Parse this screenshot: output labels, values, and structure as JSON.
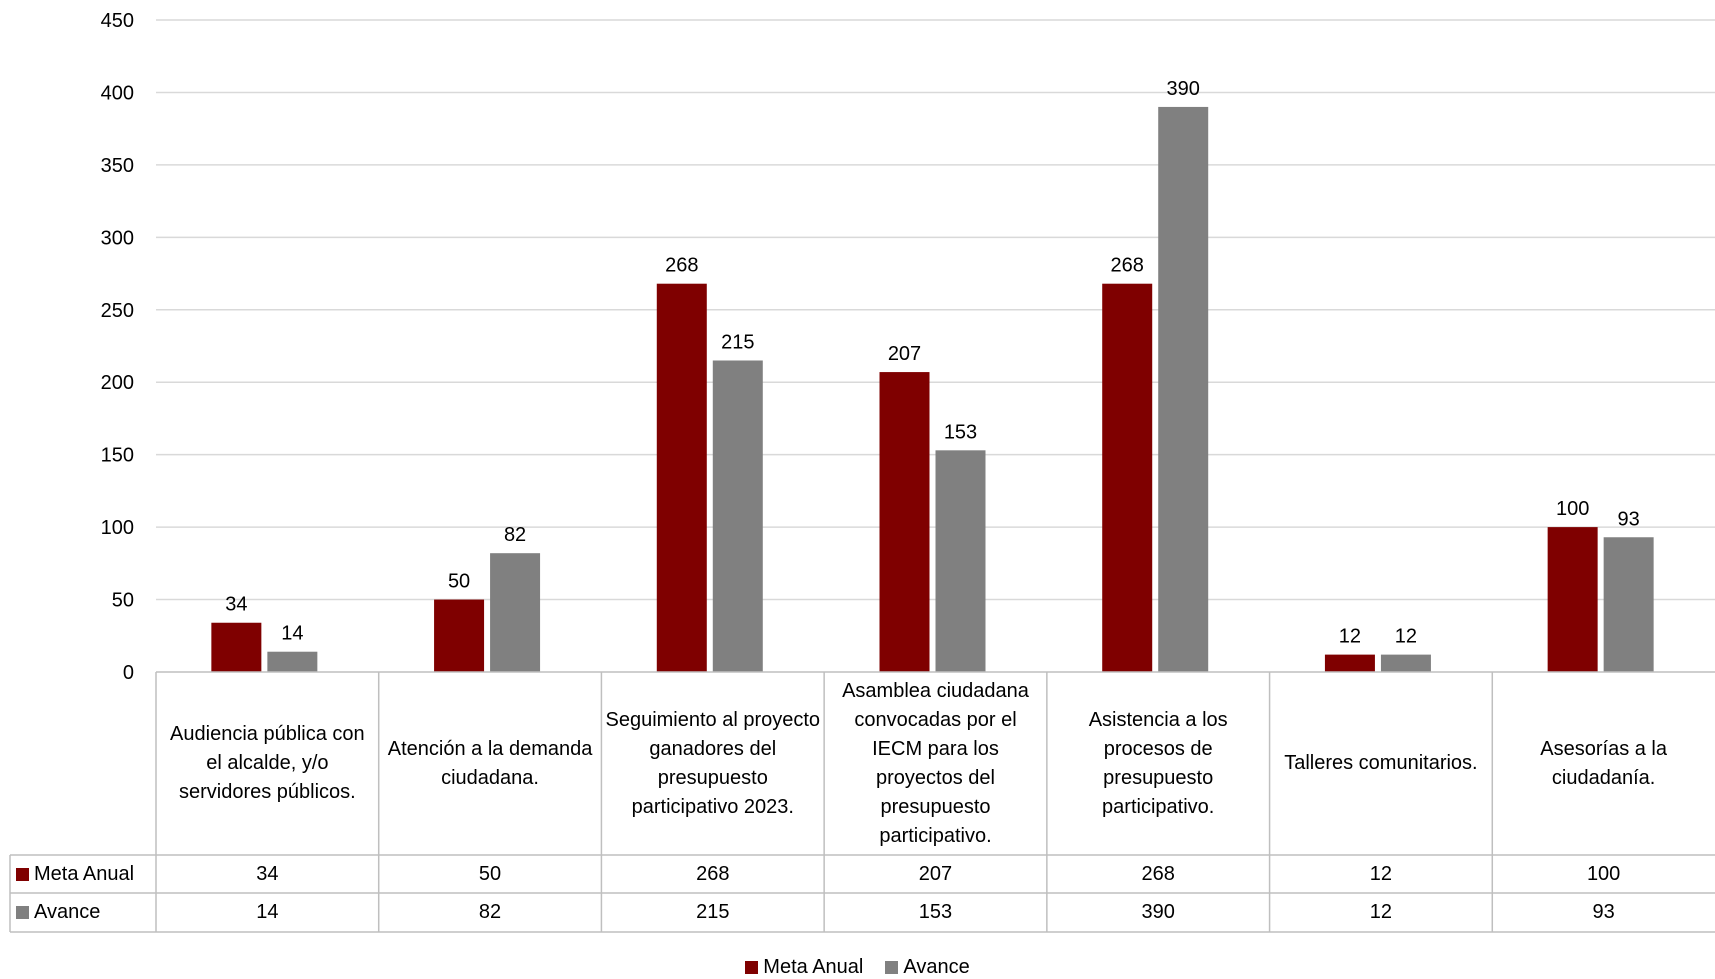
{
  "chart_data": {
    "type": "bar",
    "title": "",
    "xlabel": "",
    "ylabel": "",
    "ylim": [
      0,
      450
    ],
    "yticks": [
      0,
      50,
      100,
      150,
      200,
      250,
      300,
      350,
      400,
      450
    ],
    "grid": true,
    "legend_position": "bottom",
    "categories": [
      "Audiencia pública con el alcalde, y/o servidores públicos.",
      "Atención a la demanda ciudadana.",
      "Seguimiento al proyecto ganadores del presupuesto participativo 2023.",
      "Asamblea ciudadana convocadas por el IECM para los proyectos del presupuesto participativo.",
      "Asistencia a los procesos de presupuesto participativo.",
      "Talleres comunitarios.",
      "Asesorías a la ciudadanía."
    ],
    "series": [
      {
        "name": "Meta Anual",
        "color": "#7f0000",
        "values": [
          34,
          50,
          268,
          207,
          268,
          12,
          100
        ]
      },
      {
        "name": "Avance",
        "color": "#808080",
        "values": [
          14,
          82,
          215,
          153,
          390,
          12,
          93
        ]
      }
    ]
  }
}
